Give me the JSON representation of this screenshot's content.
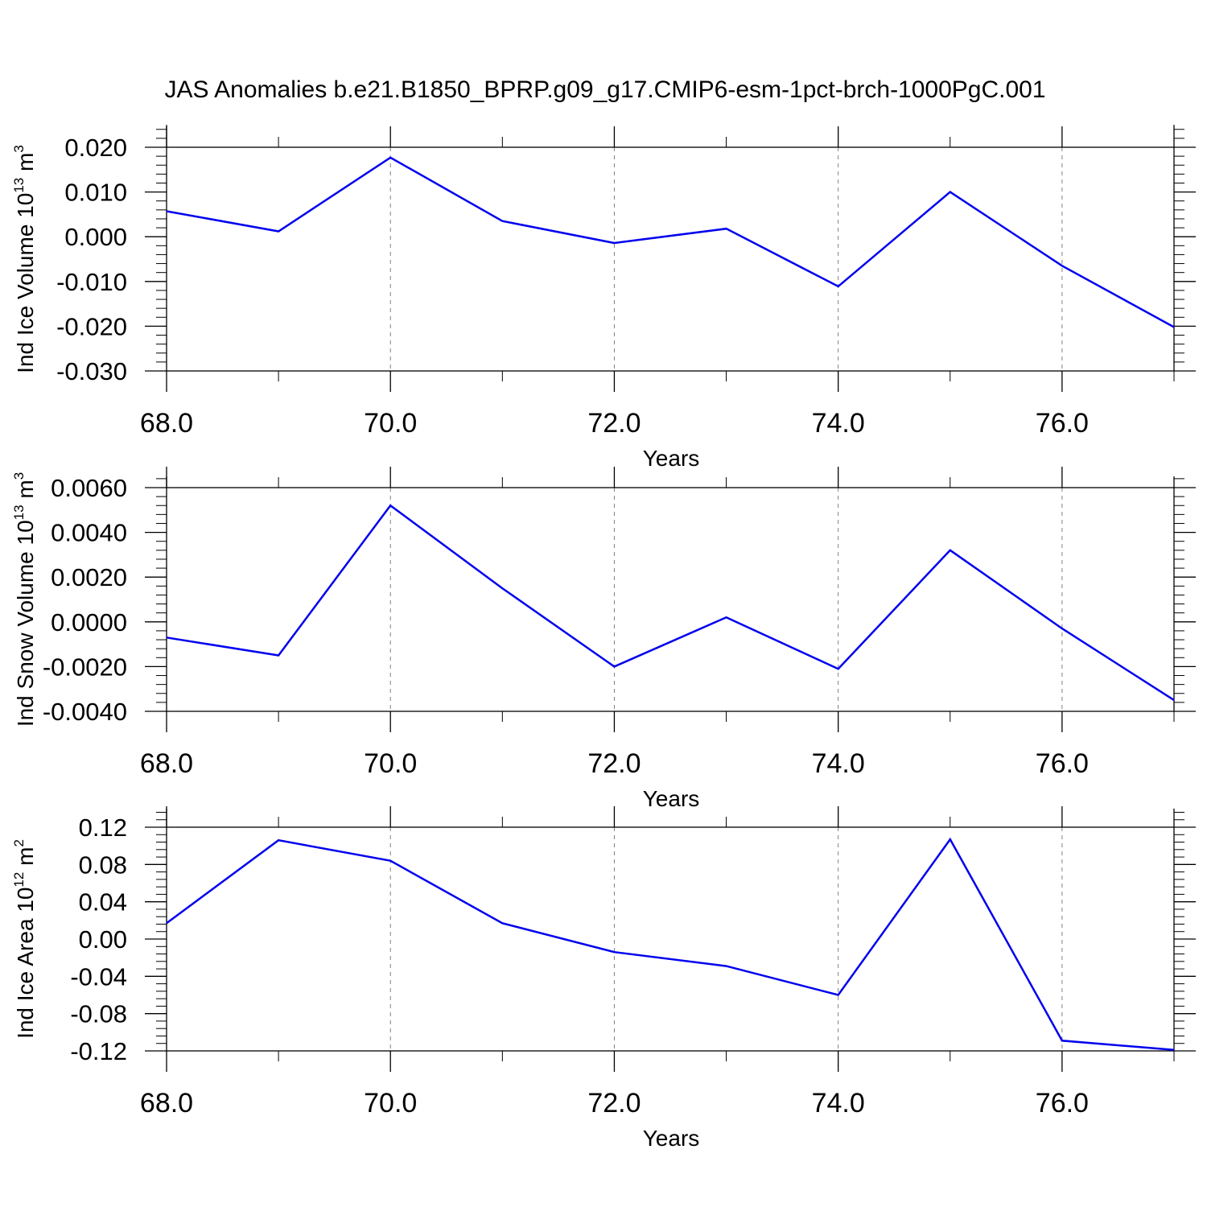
{
  "figure": {
    "title": "JAS Anomalies b.e21.B1850_BPRP.g09_g17.CMIP6-esm-1pct-brch-1000PgC.001",
    "line_color": "#0000ee"
  },
  "chart_data": [
    {
      "type": "line",
      "xlabel": "Years",
      "ylabel": {
        "main": "Ind Ice Volume 10",
        "sup": "13",
        "unit": " m",
        "unit_sup": "3"
      },
      "xlim": [
        68,
        77
      ],
      "ylim": [
        -0.03,
        0.025
      ],
      "x_ticks": [
        68,
        70,
        72,
        74,
        76
      ],
      "x_tick_labels": [
        "68.0",
        "70.0",
        "72.0",
        "74.0",
        "76.0"
      ],
      "y_ticks": [
        0.02,
        0.01,
        0.0,
        -0.01,
        -0.02,
        -0.03
      ],
      "y_tick_labels": [
        "0.020",
        "0.010",
        "0.000",
        "-0.010",
        "-0.020",
        "-0.030"
      ],
      "grid": "vertical dashed at major x ticks",
      "x": [
        68,
        69,
        70,
        71,
        72,
        73,
        74,
        75,
        76,
        77
      ],
      "y": [
        0.0057,
        0.0012,
        0.0177,
        0.0035,
        -0.0014,
        0.0018,
        -0.0111,
        0.01,
        -0.0065,
        -0.0202
      ]
    },
    {
      "type": "line",
      "xlabel": "Years",
      "ylabel": {
        "main": "Ind Snow Volume 10",
        "sup": "13",
        "unit": " m",
        "unit_sup": "3"
      },
      "xlim": [
        68,
        77
      ],
      "ylim": [
        -0.004,
        0.0065
      ],
      "x_ticks": [
        68,
        70,
        72,
        74,
        76
      ],
      "x_tick_labels": [
        "68.0",
        "70.0",
        "72.0",
        "74.0",
        "76.0"
      ],
      "y_ticks": [
        0.006,
        0.004,
        0.002,
        0.0,
        -0.002,
        -0.004
      ],
      "y_tick_labels": [
        "0.0060",
        "0.0040",
        "0.0020",
        "0.0000",
        "-0.0020",
        "-0.0040"
      ],
      "grid": "vertical dashed at major x ticks",
      "x": [
        68,
        69,
        70,
        71,
        72,
        73,
        74,
        75,
        76,
        77
      ],
      "y": [
        -0.0007,
        -0.0015,
        0.0052,
        0.0015,
        -0.002,
        0.0002,
        -0.0021,
        0.0032,
        -0.0003,
        -0.0035
      ]
    },
    {
      "type": "line",
      "xlabel": "Years",
      "ylabel": {
        "main": "Ind Ice Area 10",
        "sup": "12",
        "unit": " m",
        "unit_sup": "2"
      },
      "xlim": [
        68,
        77
      ],
      "ylim": [
        -0.12,
        0.14
      ],
      "x_ticks": [
        68,
        70,
        72,
        74,
        76
      ],
      "x_tick_labels": [
        "68.0",
        "70.0",
        "72.0",
        "74.0",
        "76.0"
      ],
      "y_ticks": [
        0.12,
        0.08,
        0.04,
        0.0,
        -0.04,
        -0.08,
        -0.12
      ],
      "y_tick_labels": [
        "0.12",
        "0.08",
        "0.04",
        "0.00",
        "-0.04",
        "-0.08",
        "-0.12"
      ],
      "grid": "vertical dashed at major x ticks",
      "x": [
        68,
        69,
        70,
        71,
        72,
        73,
        74,
        75,
        76,
        77
      ],
      "y": [
        0.017,
        0.106,
        0.084,
        0.017,
        -0.014,
        -0.029,
        -0.06,
        0.107,
        -0.109,
        -0.119
      ]
    }
  ]
}
